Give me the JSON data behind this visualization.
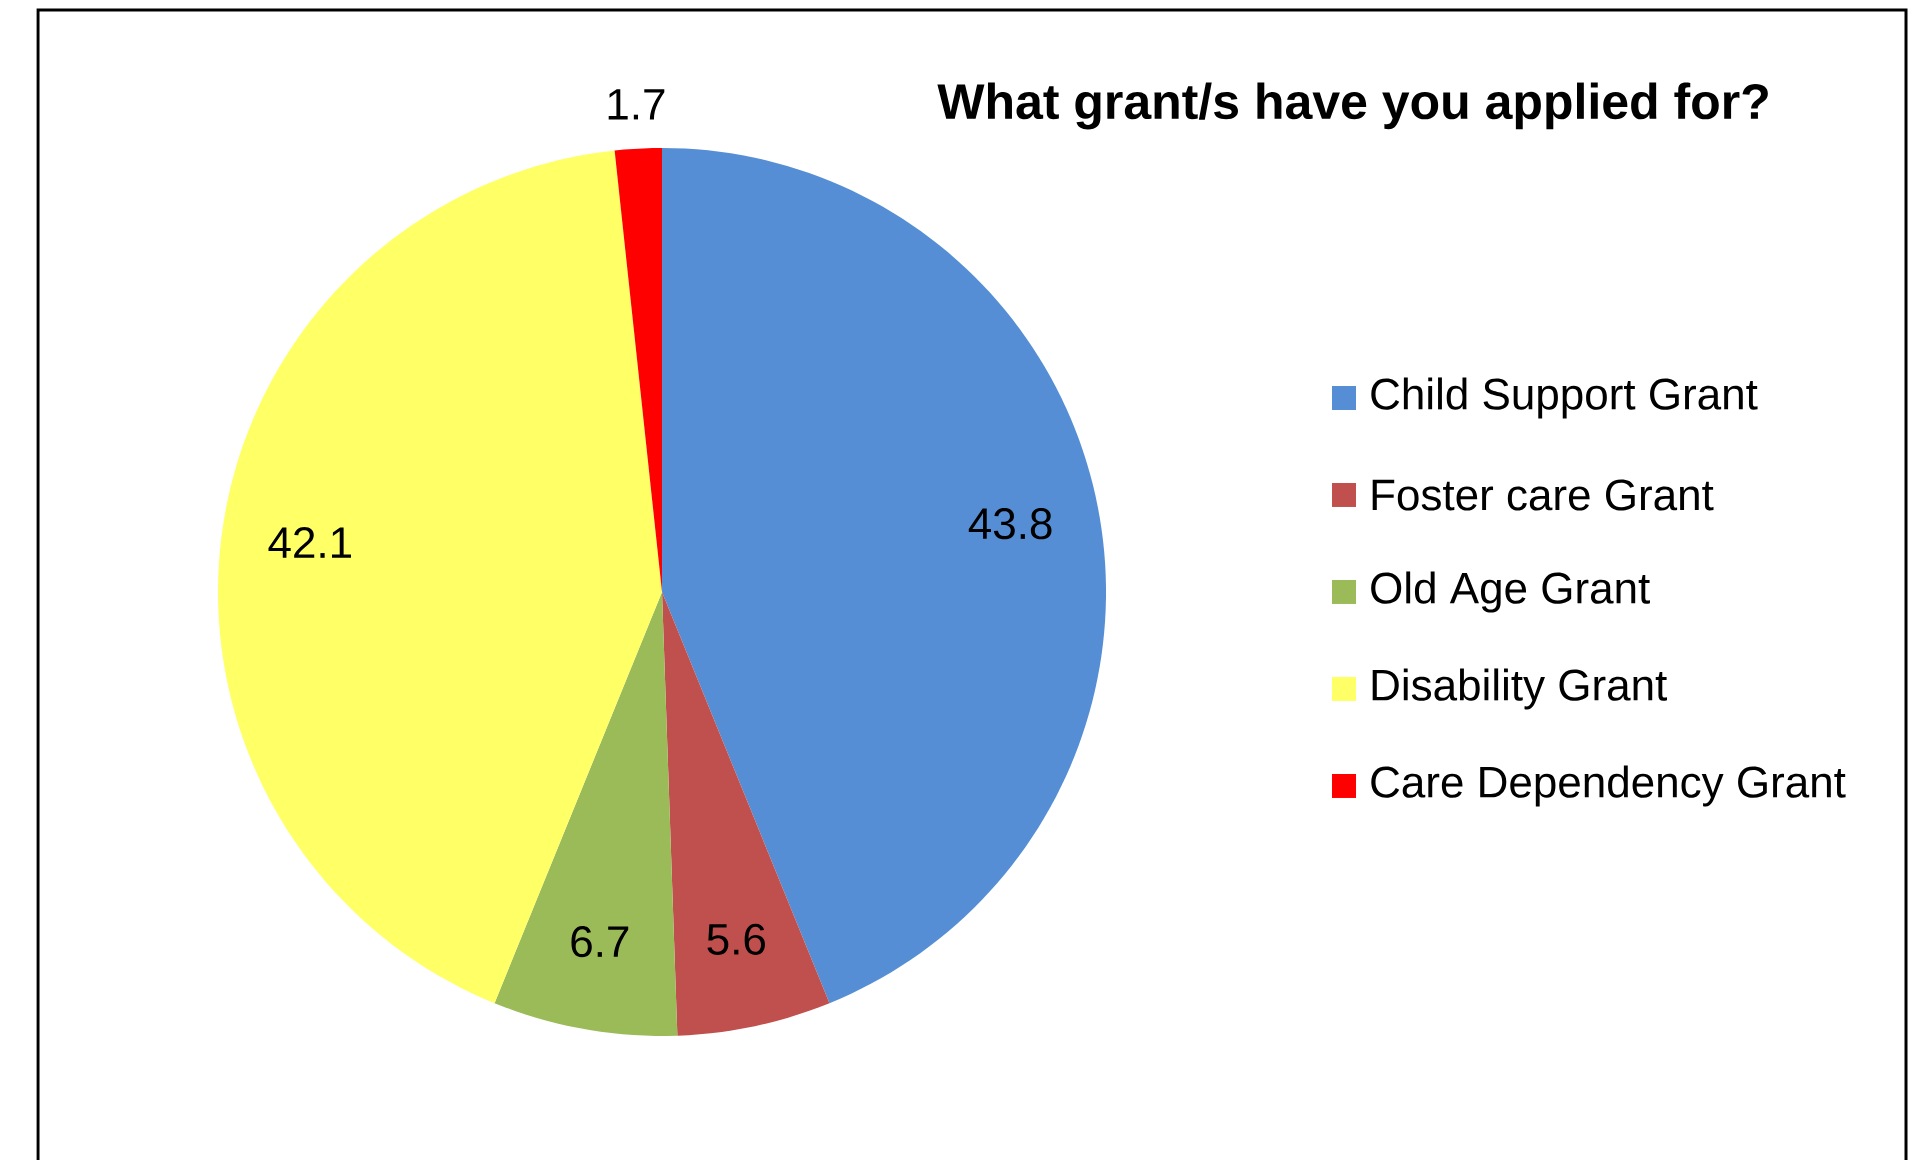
{
  "chart_data": {
    "type": "pie",
    "title": "What grant/s have you applied for?",
    "categories": [
      "Child Support Grant",
      "Foster care Grant",
      "Old Age Grant",
      "Disability Grant",
      "Care Dependency Grant"
    ],
    "values": [
      43.8,
      5.6,
      6.7,
      42.1,
      1.7
    ],
    "colors": [
      "#558ed5",
      "#c0504d",
      "#9bbb59",
      "#ffff66",
      "#ff0000"
    ],
    "data_labels": true,
    "legend": "right"
  }
}
